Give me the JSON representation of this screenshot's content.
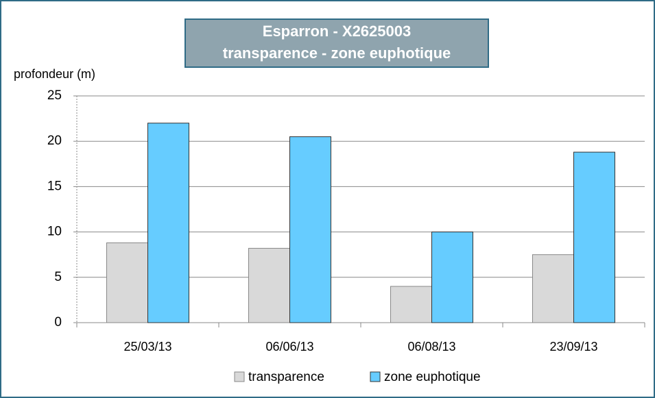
{
  "chart_data": {
    "type": "bar",
    "title": "Esparron - X2625003",
    "subtitle": "transparence - zone euphotique",
    "y_label": "profondeur (m)",
    "categories": [
      "25/03/13",
      "06/06/13",
      "06/08/13",
      "23/09/13"
    ],
    "series": [
      {
        "name": "transparence",
        "color": "#d9d9d9",
        "values": [
          8.8,
          8.2,
          4.0,
          7.5
        ]
      },
      {
        "name": "zone euphotique",
        "color": "#66ccff",
        "values": [
          22.0,
          20.5,
          10.0,
          18.8
        ]
      }
    ],
    "ylim": [
      0,
      25
    ],
    "yticks": [
      0,
      5,
      10,
      15,
      20,
      25
    ],
    "grid": true,
    "legend": "bottom"
  }
}
